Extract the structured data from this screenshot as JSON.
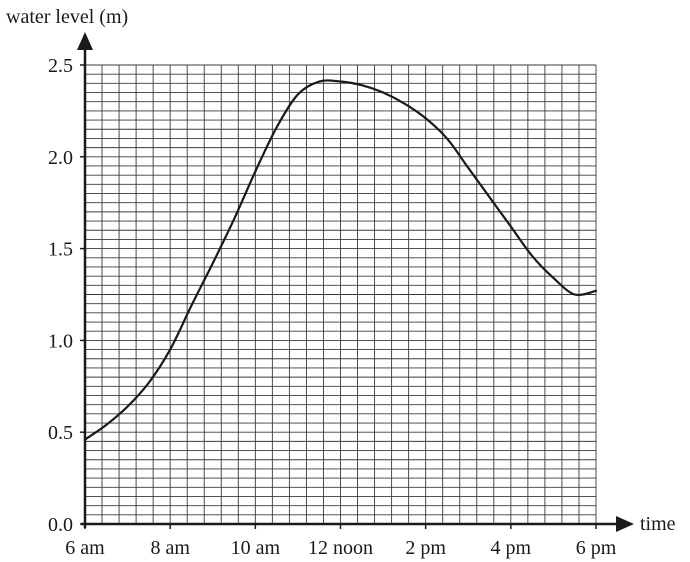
{
  "chart_data": {
    "type": "line",
    "ylabel": "water level (m)",
    "xlabel": "time",
    "xlim": [
      6,
      18
    ],
    "ylim": [
      0,
      2.5
    ],
    "x_ticks": [
      {
        "value": 6,
        "label": "6 am"
      },
      {
        "value": 8,
        "label": "8 am"
      },
      {
        "value": 10,
        "label": "10 am"
      },
      {
        "value": 12,
        "label": "12 noon"
      },
      {
        "value": 14,
        "label": "2 pm"
      },
      {
        "value": 16,
        "label": "4 pm"
      },
      {
        "value": 18,
        "label": "6 pm"
      }
    ],
    "y_ticks": [
      {
        "value": 0,
        "label": "0.0"
      },
      {
        "value": 0.5,
        "label": "0.5"
      },
      {
        "value": 1.0,
        "label": "1.0"
      },
      {
        "value": 1.5,
        "label": "1.5"
      },
      {
        "value": 2.0,
        "label": "2.0"
      },
      {
        "value": 2.5,
        "label": "2.5"
      }
    ],
    "grid": true,
    "minor_per_major_x": 5,
    "minor_per_major_y": 10,
    "series": [
      {
        "x": [
          6.0,
          6.5,
          7.0,
          7.5,
          8.0,
          8.5,
          9.0,
          9.5,
          10.0,
          10.5,
          11.0,
          11.5,
          12.0,
          12.5,
          13.0,
          13.5,
          14.0,
          14.5,
          15.0,
          15.5,
          16.0,
          16.5,
          17.0,
          17.5,
          18.0
        ],
        "y": [
          0.46,
          0.54,
          0.64,
          0.77,
          0.95,
          1.19,
          1.42,
          1.66,
          1.92,
          2.16,
          2.34,
          2.41,
          2.41,
          2.39,
          2.35,
          2.29,
          2.21,
          2.1,
          1.94,
          1.78,
          1.62,
          1.46,
          1.34,
          1.25,
          1.27
        ]
      }
    ]
  }
}
